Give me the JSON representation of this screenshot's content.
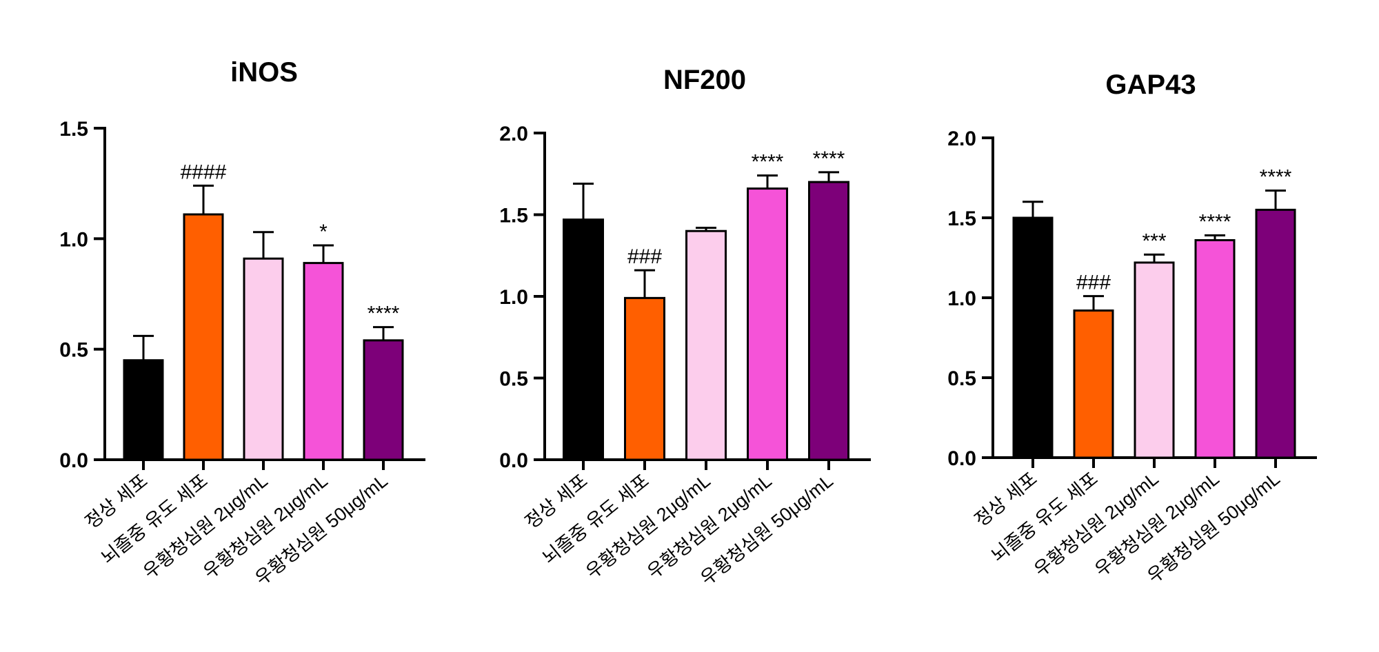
{
  "chart_data": [
    {
      "type": "bar",
      "title": "iNOS",
      "categories": [
        "정상 세포",
        "뇌졸중 유도 세포",
        "우황청심원 2μg/mL",
        "우황청심원 2μg/mL",
        "우황청심원 50μg/mL"
      ],
      "values": [
        0.45,
        1.11,
        0.91,
        0.89,
        0.54
      ],
      "errors": [
        0.11,
        0.13,
        0.12,
        0.08,
        0.06
      ],
      "annotations": [
        "",
        "####",
        "",
        "*",
        "****"
      ],
      "colors": [
        "#000000",
        "#ff5f00",
        "#fccdec",
        "#f553d8",
        "#7d0079"
      ],
      "ylim": [
        0,
        1.5
      ],
      "yticks": [
        "0.0",
        "0.5",
        "1.0",
        "1.5"
      ],
      "xlabel": "",
      "ylabel": ""
    },
    {
      "type": "bar",
      "title": "NF200",
      "categories": [
        "정상 세포",
        "뇌졸중 유도 세포",
        "우황청심원 2μg/mL",
        "우황청심원 2μg/mL",
        "우황청심원 50μg/mL"
      ],
      "values": [
        1.47,
        0.99,
        1.4,
        1.66,
        1.7
      ],
      "errors": [
        0.22,
        0.17,
        0.02,
        0.08,
        0.06
      ],
      "annotations": [
        "",
        "###",
        "",
        "****",
        "****"
      ],
      "colors": [
        "#000000",
        "#ff5f00",
        "#fccdec",
        "#f553d8",
        "#7d0079"
      ],
      "ylim": [
        0,
        2.0
      ],
      "yticks": [
        "0.0",
        "0.5",
        "1.0",
        "1.5",
        "2.0"
      ],
      "xlabel": "",
      "ylabel": ""
    },
    {
      "type": "bar",
      "title": "GAP43",
      "categories": [
        "정상 세포",
        "뇌졸중 유도 세포",
        "우황청심원 2μg/mL",
        "우황청심원 2μg/mL",
        "우황청심원 50μg/mL"
      ],
      "values": [
        1.5,
        0.92,
        1.22,
        1.36,
        1.55
      ],
      "errors": [
        0.1,
        0.09,
        0.05,
        0.03,
        0.12
      ],
      "annotations": [
        "",
        "###",
        "***",
        "****",
        "****"
      ],
      "colors": [
        "#000000",
        "#ff5f00",
        "#fccdec",
        "#f553d8",
        "#7d0079"
      ],
      "ylim": [
        0,
        2.0
      ],
      "yticks": [
        "0.0",
        "0.5",
        "1.0",
        "1.5",
        "2.0"
      ],
      "xlabel": "",
      "ylabel": ""
    }
  ]
}
